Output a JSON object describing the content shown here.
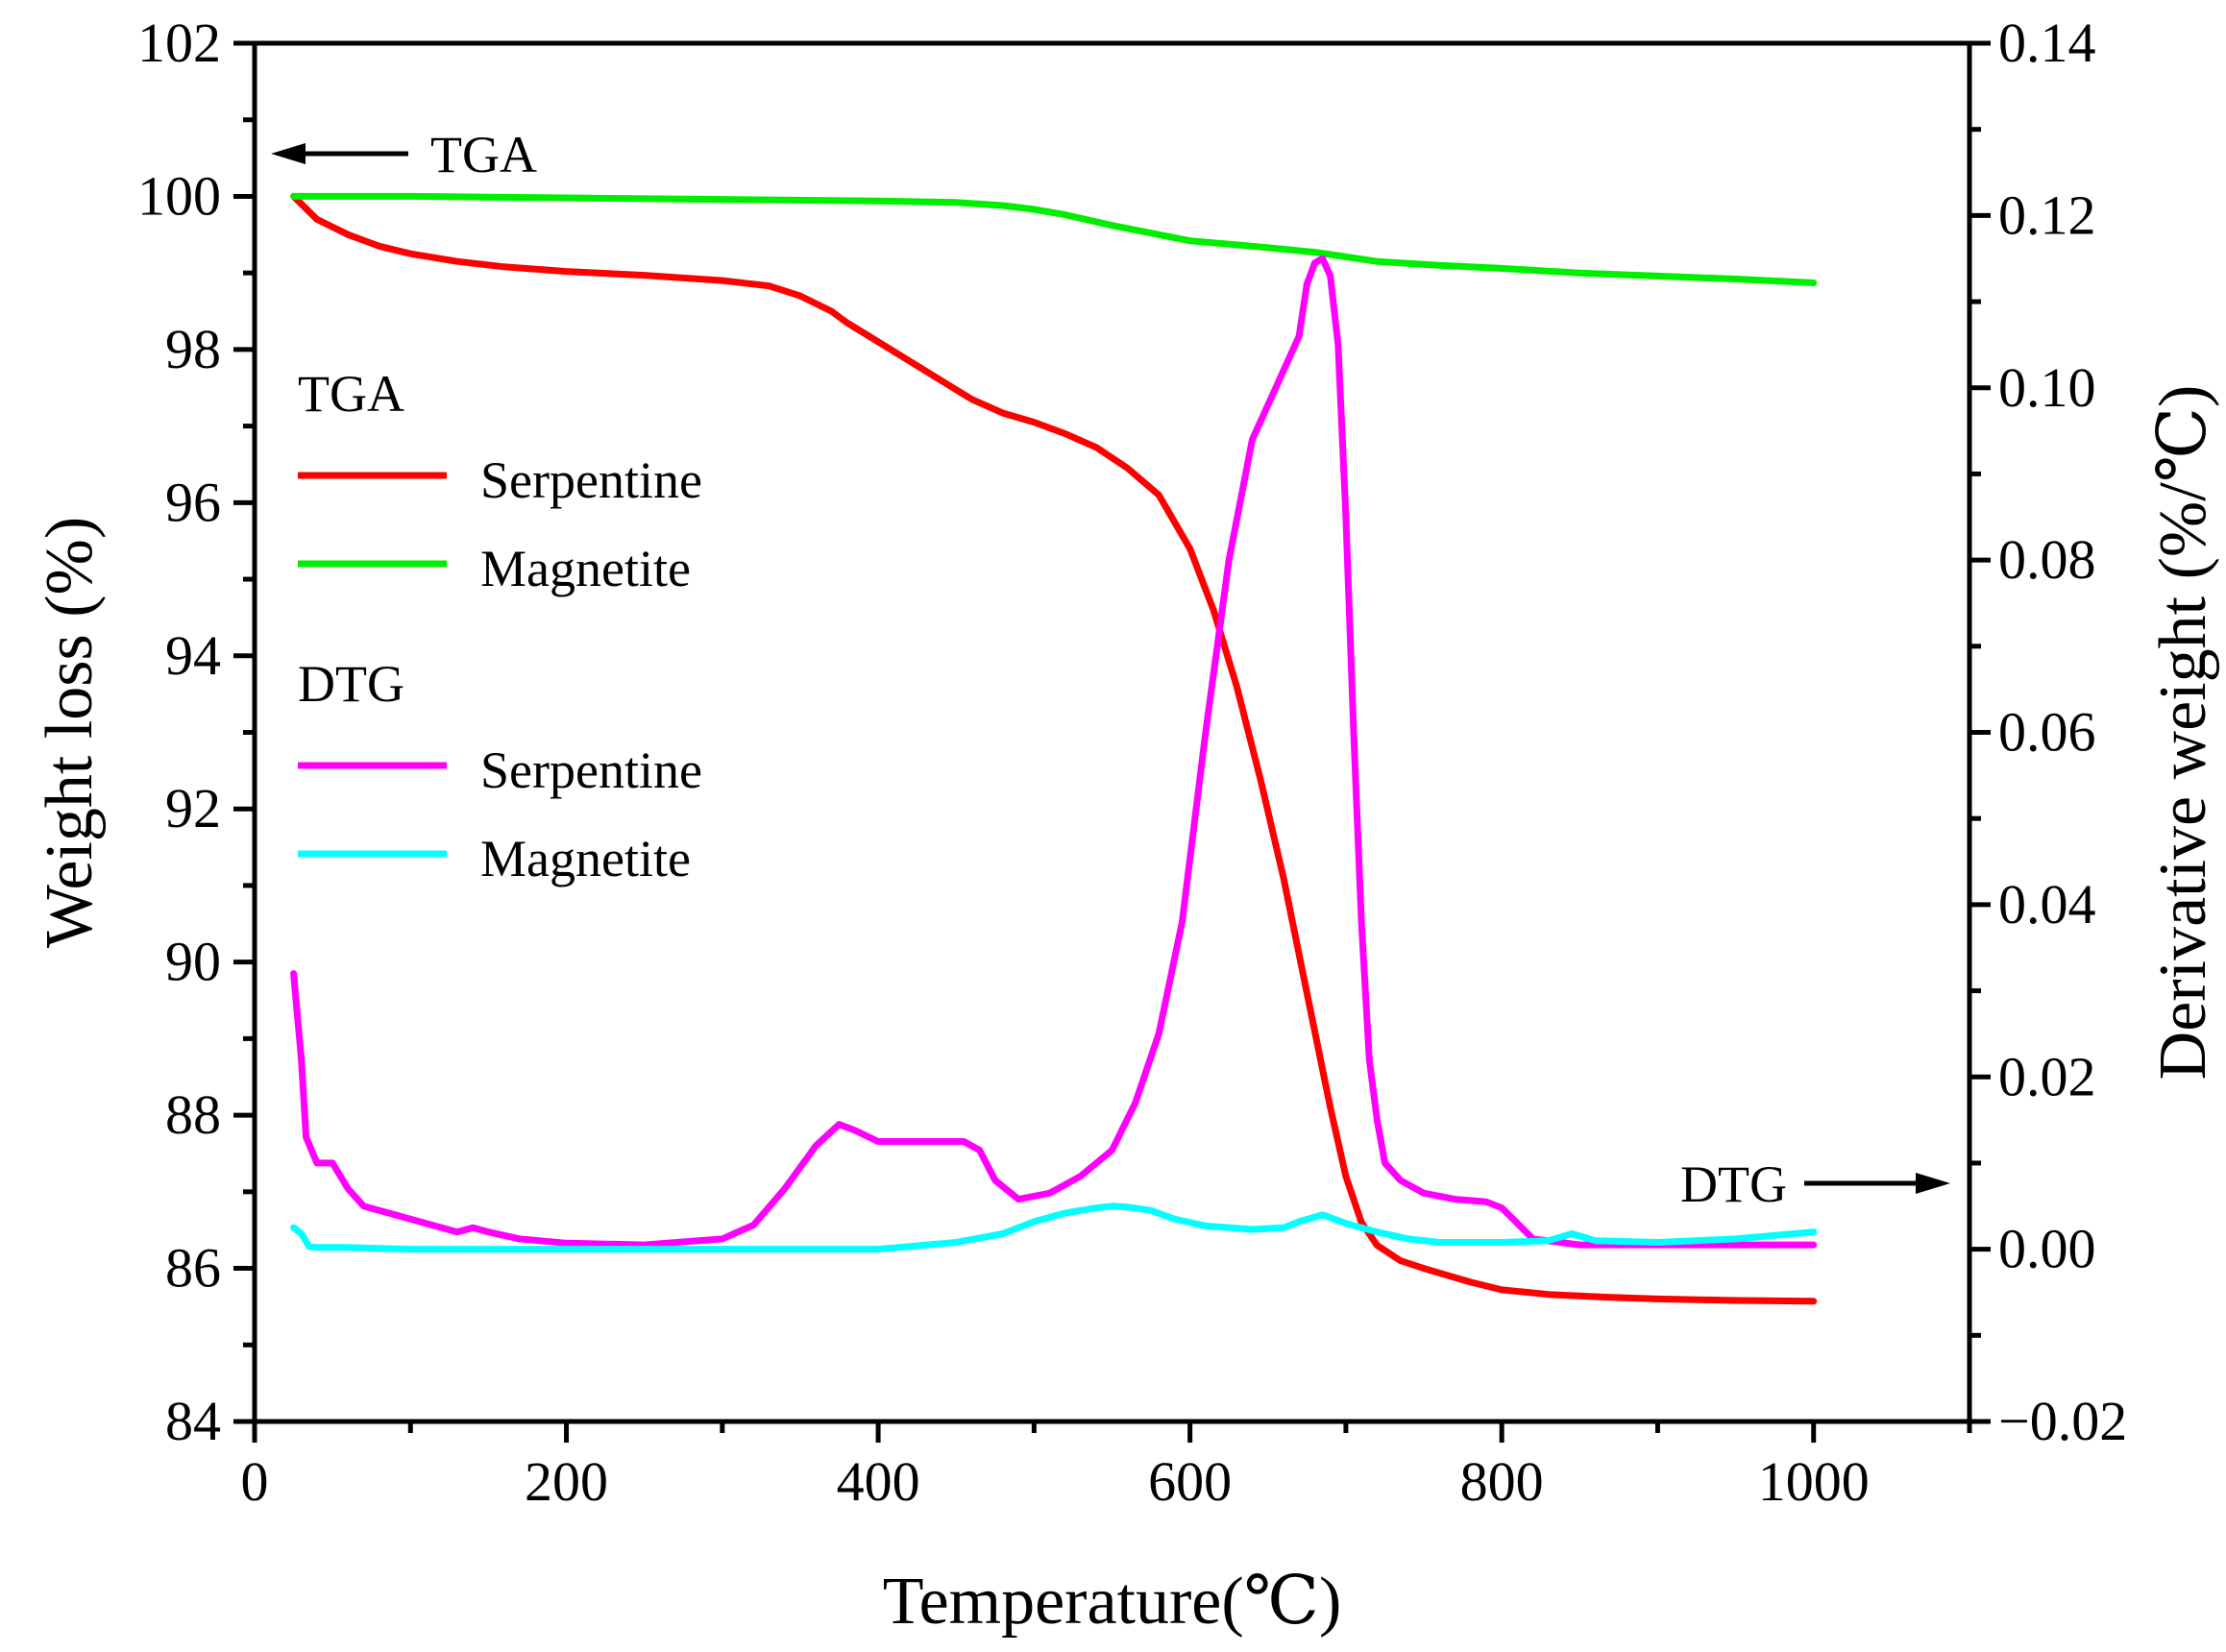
{
  "chart_data": {
    "type": "line",
    "xlabel": "Temperature(℃)",
    "ylabel_left": "Weight loss (%)",
    "ylabel_right": "Derivative weight (%/℃)",
    "xlim": [
      0,
      1100
    ],
    "ylim_left": [
      84,
      102
    ],
    "ylim_right": [
      -0.02,
      0.14
    ],
    "x_ticks": [
      "0",
      "200",
      "400",
      "600",
      "800",
      "1000"
    ],
    "y_ticks_left": [
      "84",
      "86",
      "88",
      "90",
      "92",
      "94",
      "96",
      "98",
      "100",
      "102"
    ],
    "y_ticks_right": [
      "−0.02",
      "0.00",
      "0.02",
      "0.04",
      "0.06",
      "0.08",
      "0.10",
      "0.12",
      "0.14"
    ],
    "legend": {
      "placement": "left",
      "groups": [
        {
          "heading": "TGA",
          "entries": [
            {
              "label": "Serpentine",
              "color": "#ff0000"
            },
            {
              "label": "Magnetite",
              "color": "#00ee00"
            }
          ]
        },
        {
          "heading": "DTG",
          "entries": [
            {
              "label": "Serpentine",
              "color": "#ff00ff"
            },
            {
              "label": "Magnetite",
              "color": "#00ffff"
            }
          ]
        }
      ]
    },
    "annotations": [
      {
        "text": "TGA",
        "arrow": "left",
        "axis": "left"
      },
      {
        "text": "DTG",
        "arrow": "right",
        "axis": "right"
      }
    ],
    "series": [
      {
        "group": "TGA",
        "name": "Serpentine",
        "axis": "left",
        "color": "#ff0000",
        "x": [
          25,
          40,
          60,
          80,
          100,
          130,
          160,
          200,
          250,
          300,
          330,
          350,
          370,
          380,
          400,
          420,
          440,
          460,
          480,
          500,
          520,
          540,
          560,
          580,
          600,
          615,
          630,
          645,
          660,
          675,
          690,
          700,
          710,
          720,
          735,
          750,
          780,
          800,
          830,
          870,
          900,
          950,
          1000
        ],
        "y": [
          100,
          99.7,
          99.5,
          99.35,
          99.25,
          99.15,
          99.08,
          99.02,
          98.97,
          98.9,
          98.83,
          98.7,
          98.5,
          98.35,
          98.1,
          97.85,
          97.6,
          97.35,
          97.17,
          97.05,
          96.9,
          96.72,
          96.45,
          96.1,
          95.4,
          94.6,
          93.6,
          92.4,
          91.1,
          89.6,
          88.1,
          87.2,
          86.6,
          86.3,
          86.1,
          86.0,
          85.82,
          85.72,
          85.66,
          85.62,
          85.6,
          85.58,
          85.57
        ]
      },
      {
        "group": "TGA",
        "name": "Magnetite",
        "axis": "left",
        "color": "#00ee00",
        "x": [
          25,
          100,
          200,
          300,
          400,
          450,
          480,
          500,
          520,
          550,
          580,
          600,
          640,
          680,
          720,
          760,
          800,
          850,
          900,
          950,
          1000
        ],
        "y": [
          100,
          100,
          99.98,
          99.96,
          99.94,
          99.92,
          99.88,
          99.83,
          99.76,
          99.62,
          99.5,
          99.42,
          99.35,
          99.27,
          99.15,
          99.1,
          99.06,
          99.0,
          98.96,
          98.92,
          98.87
        ]
      },
      {
        "group": "DTG",
        "name": "Serpentine",
        "axis": "right",
        "color": "#ff00ff",
        "x": [
          25,
          30,
          33,
          40,
          50,
          60,
          70,
          90,
          110,
          130,
          140,
          150,
          170,
          200,
          250,
          300,
          320,
          340,
          360,
          375,
          385,
          400,
          420,
          440,
          455,
          465,
          475,
          490,
          510,
          530,
          550,
          565,
          580,
          595,
          610,
          625,
          640,
          655,
          670,
          675,
          680,
          685,
          690,
          695,
          700,
          705,
          710,
          715,
          720,
          725,
          735,
          750,
          770,
          790,
          800,
          810,
          820,
          850,
          900,
          950,
          1000
        ],
        "y": [
          0.032,
          0.022,
          0.013,
          0.01,
          0.01,
          0.007,
          0.005,
          0.004,
          0.003,
          0.002,
          0.0025,
          0.002,
          0.0012,
          0.0007,
          0.0005,
          0.0012,
          0.0028,
          0.007,
          0.012,
          0.0145,
          0.0138,
          0.0125,
          0.0125,
          0.0125,
          0.0125,
          0.0115,
          0.008,
          0.0058,
          0.0065,
          0.0085,
          0.0115,
          0.017,
          0.025,
          0.038,
          0.06,
          0.08,
          0.094,
          0.1,
          0.106,
          0.112,
          0.1145,
          0.115,
          0.113,
          0.105,
          0.085,
          0.06,
          0.038,
          0.022,
          0.015,
          0.01,
          0.008,
          0.0065,
          0.0058,
          0.0055,
          0.0048,
          0.003,
          0.0012,
          0.0005,
          0.0005,
          0.0005,
          0.0005
        ]
      },
      {
        "group": "DTG",
        "name": "Magnetite",
        "axis": "right",
        "color": "#00ffff",
        "x": [
          25,
          30,
          35,
          40,
          60,
          100,
          200,
          300,
          400,
          450,
          480,
          500,
          520,
          540,
          550,
          560,
          575,
          590,
          610,
          640,
          660,
          670,
          685,
          700,
          720,
          740,
          760,
          800,
          830,
          845,
          860,
          900,
          950,
          1000
        ],
        "y": [
          0.0025,
          0.0018,
          0.0003,
          0.0002,
          0.0002,
          0.0,
          0.0,
          0.0,
          0.0,
          0.0008,
          0.0018,
          0.0032,
          0.0042,
          0.0048,
          0.005,
          0.0049,
          0.0045,
          0.0035,
          0.0027,
          0.0023,
          0.0025,
          0.0032,
          0.004,
          0.003,
          0.002,
          0.0012,
          0.0008,
          0.0008,
          0.001,
          0.0018,
          0.001,
          0.0008,
          0.0012,
          0.002
        ]
      }
    ]
  }
}
